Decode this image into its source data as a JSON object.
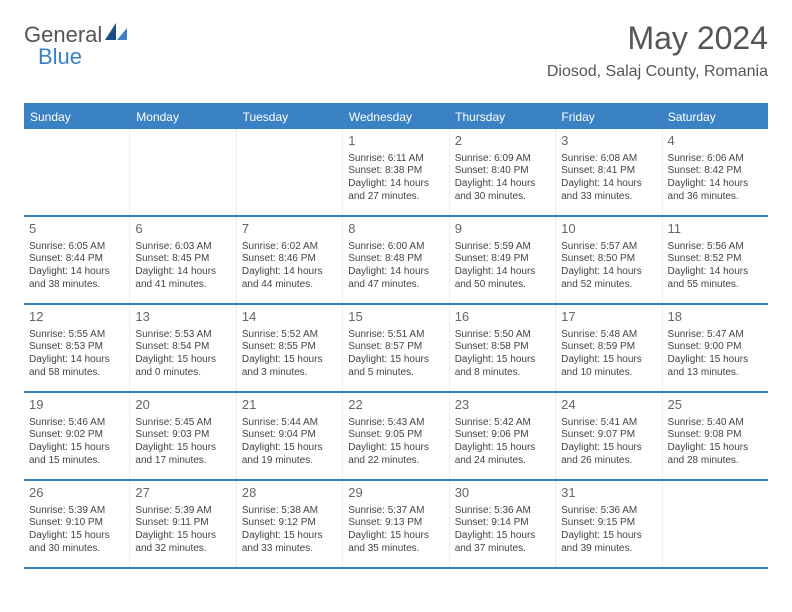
{
  "logo": {
    "part1": "General",
    "part2": "Blue"
  },
  "header": {
    "month": "May 2024",
    "location": "Diosod, Salaj County, Romania"
  },
  "colors": {
    "accent": "#3b82c4",
    "text": "#555555",
    "cell_text": "#444444",
    "bg": "#ffffff"
  },
  "calendar": {
    "dow": [
      "Sunday",
      "Monday",
      "Tuesday",
      "Wednesday",
      "Thursday",
      "Friday",
      "Saturday"
    ],
    "weeks": [
      [
        null,
        null,
        null,
        {
          "n": "1",
          "sr": "Sunrise: 6:11 AM",
          "ss": "Sunset: 8:38 PM",
          "d1": "Daylight: 14 hours",
          "d2": "and 27 minutes."
        },
        {
          "n": "2",
          "sr": "Sunrise: 6:09 AM",
          "ss": "Sunset: 8:40 PM",
          "d1": "Daylight: 14 hours",
          "d2": "and 30 minutes."
        },
        {
          "n": "3",
          "sr": "Sunrise: 6:08 AM",
          "ss": "Sunset: 8:41 PM",
          "d1": "Daylight: 14 hours",
          "d2": "and 33 minutes."
        },
        {
          "n": "4",
          "sr": "Sunrise: 6:06 AM",
          "ss": "Sunset: 8:42 PM",
          "d1": "Daylight: 14 hours",
          "d2": "and 36 minutes."
        }
      ],
      [
        {
          "n": "5",
          "sr": "Sunrise: 6:05 AM",
          "ss": "Sunset: 8:44 PM",
          "d1": "Daylight: 14 hours",
          "d2": "and 38 minutes."
        },
        {
          "n": "6",
          "sr": "Sunrise: 6:03 AM",
          "ss": "Sunset: 8:45 PM",
          "d1": "Daylight: 14 hours",
          "d2": "and 41 minutes."
        },
        {
          "n": "7",
          "sr": "Sunrise: 6:02 AM",
          "ss": "Sunset: 8:46 PM",
          "d1": "Daylight: 14 hours",
          "d2": "and 44 minutes."
        },
        {
          "n": "8",
          "sr": "Sunrise: 6:00 AM",
          "ss": "Sunset: 8:48 PM",
          "d1": "Daylight: 14 hours",
          "d2": "and 47 minutes."
        },
        {
          "n": "9",
          "sr": "Sunrise: 5:59 AM",
          "ss": "Sunset: 8:49 PM",
          "d1": "Daylight: 14 hours",
          "d2": "and 50 minutes."
        },
        {
          "n": "10",
          "sr": "Sunrise: 5:57 AM",
          "ss": "Sunset: 8:50 PM",
          "d1": "Daylight: 14 hours",
          "d2": "and 52 minutes."
        },
        {
          "n": "11",
          "sr": "Sunrise: 5:56 AM",
          "ss": "Sunset: 8:52 PM",
          "d1": "Daylight: 14 hours",
          "d2": "and 55 minutes."
        }
      ],
      [
        {
          "n": "12",
          "sr": "Sunrise: 5:55 AM",
          "ss": "Sunset: 8:53 PM",
          "d1": "Daylight: 14 hours",
          "d2": "and 58 minutes."
        },
        {
          "n": "13",
          "sr": "Sunrise: 5:53 AM",
          "ss": "Sunset: 8:54 PM",
          "d1": "Daylight: 15 hours",
          "d2": "and 0 minutes."
        },
        {
          "n": "14",
          "sr": "Sunrise: 5:52 AM",
          "ss": "Sunset: 8:55 PM",
          "d1": "Daylight: 15 hours",
          "d2": "and 3 minutes."
        },
        {
          "n": "15",
          "sr": "Sunrise: 5:51 AM",
          "ss": "Sunset: 8:57 PM",
          "d1": "Daylight: 15 hours",
          "d2": "and 5 minutes."
        },
        {
          "n": "16",
          "sr": "Sunrise: 5:50 AM",
          "ss": "Sunset: 8:58 PM",
          "d1": "Daylight: 15 hours",
          "d2": "and 8 minutes."
        },
        {
          "n": "17",
          "sr": "Sunrise: 5:48 AM",
          "ss": "Sunset: 8:59 PM",
          "d1": "Daylight: 15 hours",
          "d2": "and 10 minutes."
        },
        {
          "n": "18",
          "sr": "Sunrise: 5:47 AM",
          "ss": "Sunset: 9:00 PM",
          "d1": "Daylight: 15 hours",
          "d2": "and 13 minutes."
        }
      ],
      [
        {
          "n": "19",
          "sr": "Sunrise: 5:46 AM",
          "ss": "Sunset: 9:02 PM",
          "d1": "Daylight: 15 hours",
          "d2": "and 15 minutes."
        },
        {
          "n": "20",
          "sr": "Sunrise: 5:45 AM",
          "ss": "Sunset: 9:03 PM",
          "d1": "Daylight: 15 hours",
          "d2": "and 17 minutes."
        },
        {
          "n": "21",
          "sr": "Sunrise: 5:44 AM",
          "ss": "Sunset: 9:04 PM",
          "d1": "Daylight: 15 hours",
          "d2": "and 19 minutes."
        },
        {
          "n": "22",
          "sr": "Sunrise: 5:43 AM",
          "ss": "Sunset: 9:05 PM",
          "d1": "Daylight: 15 hours",
          "d2": "and 22 minutes."
        },
        {
          "n": "23",
          "sr": "Sunrise: 5:42 AM",
          "ss": "Sunset: 9:06 PM",
          "d1": "Daylight: 15 hours",
          "d2": "and 24 minutes."
        },
        {
          "n": "24",
          "sr": "Sunrise: 5:41 AM",
          "ss": "Sunset: 9:07 PM",
          "d1": "Daylight: 15 hours",
          "d2": "and 26 minutes."
        },
        {
          "n": "25",
          "sr": "Sunrise: 5:40 AM",
          "ss": "Sunset: 9:08 PM",
          "d1": "Daylight: 15 hours",
          "d2": "and 28 minutes."
        }
      ],
      [
        {
          "n": "26",
          "sr": "Sunrise: 5:39 AM",
          "ss": "Sunset: 9:10 PM",
          "d1": "Daylight: 15 hours",
          "d2": "and 30 minutes."
        },
        {
          "n": "27",
          "sr": "Sunrise: 5:39 AM",
          "ss": "Sunset: 9:11 PM",
          "d1": "Daylight: 15 hours",
          "d2": "and 32 minutes."
        },
        {
          "n": "28",
          "sr": "Sunrise: 5:38 AM",
          "ss": "Sunset: 9:12 PM",
          "d1": "Daylight: 15 hours",
          "d2": "and 33 minutes."
        },
        {
          "n": "29",
          "sr": "Sunrise: 5:37 AM",
          "ss": "Sunset: 9:13 PM",
          "d1": "Daylight: 15 hours",
          "d2": "and 35 minutes."
        },
        {
          "n": "30",
          "sr": "Sunrise: 5:36 AM",
          "ss": "Sunset: 9:14 PM",
          "d1": "Daylight: 15 hours",
          "d2": "and 37 minutes."
        },
        {
          "n": "31",
          "sr": "Sunrise: 5:36 AM",
          "ss": "Sunset: 9:15 PM",
          "d1": "Daylight: 15 hours",
          "d2": "and 39 minutes."
        },
        null
      ]
    ]
  }
}
